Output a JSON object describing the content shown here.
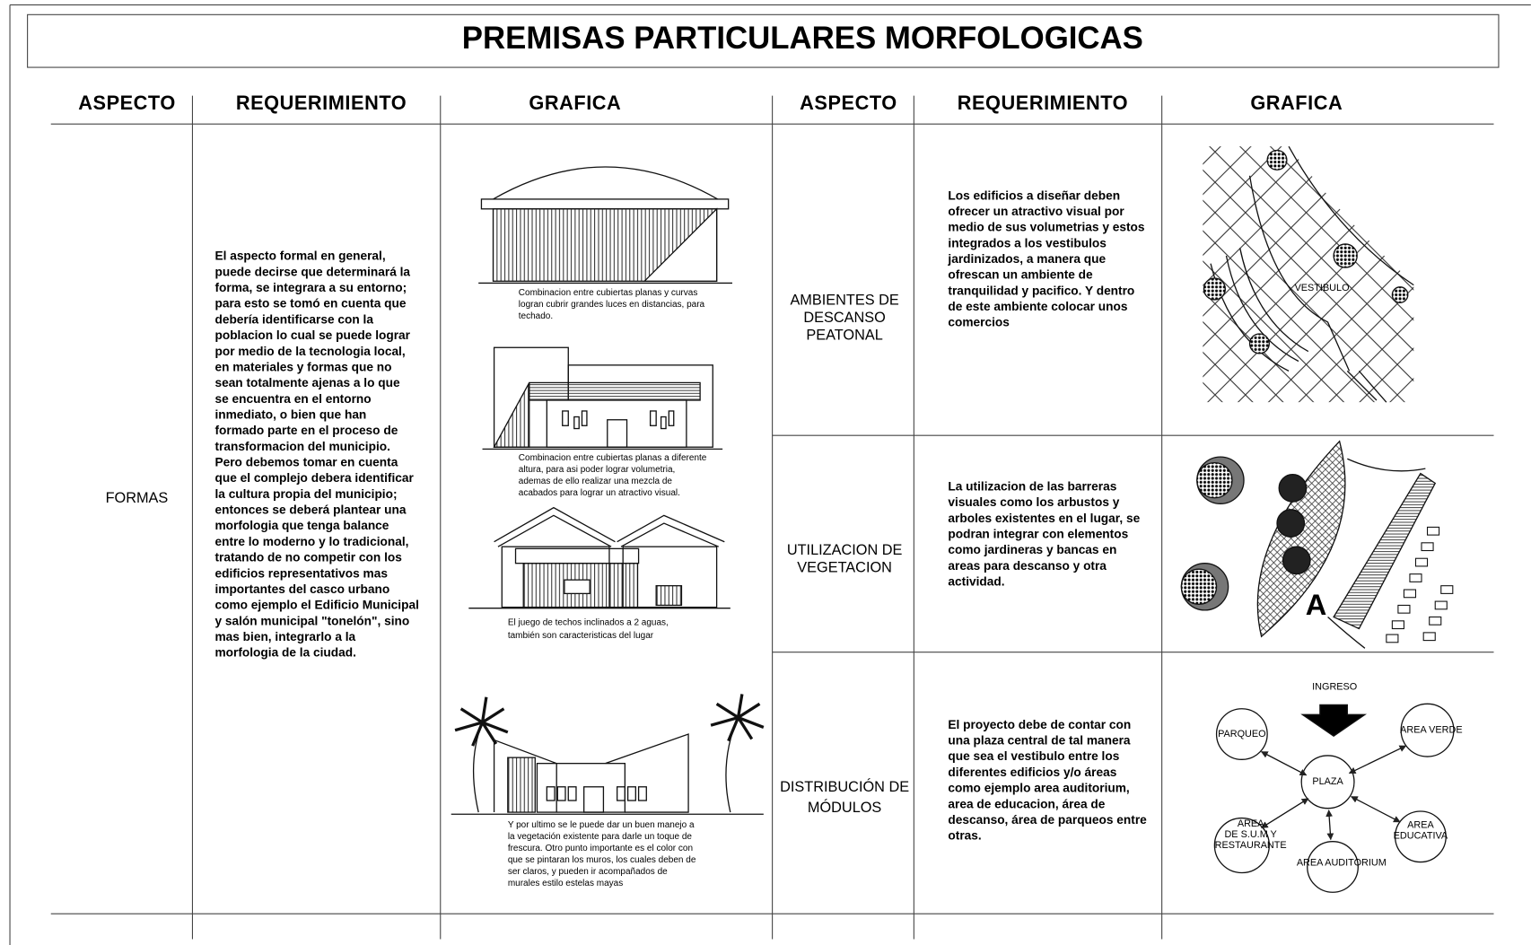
{
  "title": "PREMISAS PARTICULARES MORFOLOGICAS",
  "headers": [
    "ASPECTO",
    "REQUERIMIENTO",
    "GRAFICA",
    "ASPECTO",
    "REQUERIMIENTO",
    "GRAFICA"
  ],
  "left": {
    "aspect": "FORMAS",
    "requirement": [
      "El aspecto formal en general,",
      "puede decirse que determinará la",
      "forma, se integrara a su entorno;",
      "para esto se tomó en cuenta que",
      "debería identificarse con la",
      "poblacion lo cual se puede lograr",
      "por medio de la tecnologia local,",
      "en materiales y formas que no",
      "sean totalmente ajenas a lo que",
      "se encuentra en el entorno",
      "inmediato, o bien que han",
      "formado parte en el proceso de",
      "transformacion del municipio.",
      "Pero debemos tomar en cuenta",
      "que el complejo debera identificar",
      "la cultura propia del municipio;",
      "entonces se deberá plantear una",
      "morfologia que tenga balance",
      "entre lo moderno y lo tradicional,",
      "tratando de no competir con los",
      "edificios representativos mas",
      "importantes del casco urbano",
      "como ejemplo el Edificio Municipal",
      "y salón municipal \"tonelón\", sino",
      "mas bien, integrarlo a la",
      "morfologia de la ciudad."
    ],
    "captions": [
      [
        "Combinacion entre cubiertas planas y curvas",
        "logran cubrir grandes luces en distancias, para",
        "techado."
      ],
      [
        "Combinacion entre cubiertas planas a diferente",
        "altura,  para asi poder lograr volumetria,",
        "ademas de ello realizar una mezcla de",
        "acabados para lograr un atractivo visual."
      ],
      [
        "El juego de techos inclinados a 2 aguas,",
        "también son caracteristicas del lugar"
      ],
      [
        "Y por ultimo se le puede dar un buen manejo a",
        "la vegetación existente para darle un toque de",
        "frescura. Otro punto importante es el color con",
        "que se pintaran los muros, los cuales deben de",
        "ser claros, y pueden ir acompañados de",
        "murales estilo estelas mayas"
      ]
    ]
  },
  "right": [
    {
      "aspect": [
        "AMBIENTES DE",
        "DESCANSO",
        "PEATONAL"
      ],
      "requirement": [
        "Los edificios a diseñar deben",
        "ofrecer un atractivo visual por",
        "medio de sus volumetrias y estos",
        "integrados a los vestibulos",
        "jardinizados, a manera que",
        "ofrescan un ambiente de",
        "tranquilidad y pacifico. Y dentro",
        "de este ambiente colocar unos",
        "comercios"
      ],
      "plan_label": "VESTIBULO"
    },
    {
      "aspect": [
        "UTILIZACION DE",
        "VEGETACION"
      ],
      "requirement": [
        "La utilizacion de las barreras",
        "visuales como los arbustos y",
        "arboles existentes en el lugar, se",
        "podran integrar con elementos",
        "como jardineras y bancas en",
        "areas para descanso y otra",
        "actividad."
      ],
      "plan_label": "A"
    },
    {
      "aspect": [
        "DISTRIBUCIÓN DE",
        "MÓDULOS"
      ],
      "requirement": [
        "El proyecto debe de contar con",
        "una plaza central  de tal manera",
        "que sea el vestibulo entre los",
        "diferentes edificios y/o áreas",
        "como ejemplo area auditorium,",
        "area de educacion, área de",
        "descanso, área de parqueos entre",
        "otras."
      ],
      "diagram": {
        "entry": "INGRESO",
        "nodes": [
          [
            "PARQUEO"
          ],
          [
            "AREA VERDE"
          ],
          [
            "PLAZA"
          ],
          [
            "AREA",
            "DE S.U.M Y",
            "RESTAURANTE"
          ],
          [
            "AREA AUDITORIUM"
          ],
          [
            "AREA",
            "EDUCATIVA"
          ]
        ]
      }
    }
  ]
}
